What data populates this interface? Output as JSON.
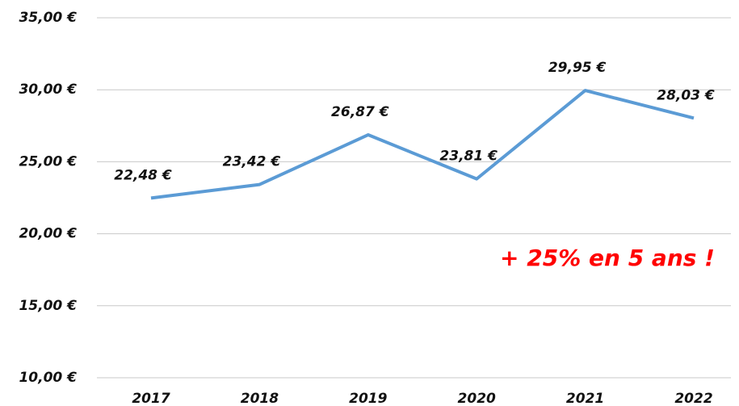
{
  "chart_data": {
    "type": "line",
    "categories": [
      "2017",
      "2018",
      "2019",
      "2020",
      "2021",
      "2022"
    ],
    "series": [
      {
        "color": "#5b9bd5",
        "values": [
          22.48,
          23.42,
          26.87,
          23.81,
          29.95,
          28.03
        ],
        "value_labels": [
          "22,48 €",
          "23,42 €",
          "26,87 €",
          "23,81 €",
          "29,95 €",
          "28,03 €"
        ]
      }
    ],
    "ylim": [
      10,
      35
    ],
    "yticks": [
      {
        "value": 10,
        "label": "10,00 €"
      },
      {
        "value": 15,
        "label": "15,00 €"
      },
      {
        "value": 20,
        "label": "20,00 €"
      },
      {
        "value": 25,
        "label": "25,00 €"
      },
      {
        "value": 30,
        "label": "30,00 €"
      },
      {
        "value": 35,
        "label": "35,00 €"
      }
    ],
    "grid": true,
    "annotation": "+ 25% en 5 ans !"
  }
}
